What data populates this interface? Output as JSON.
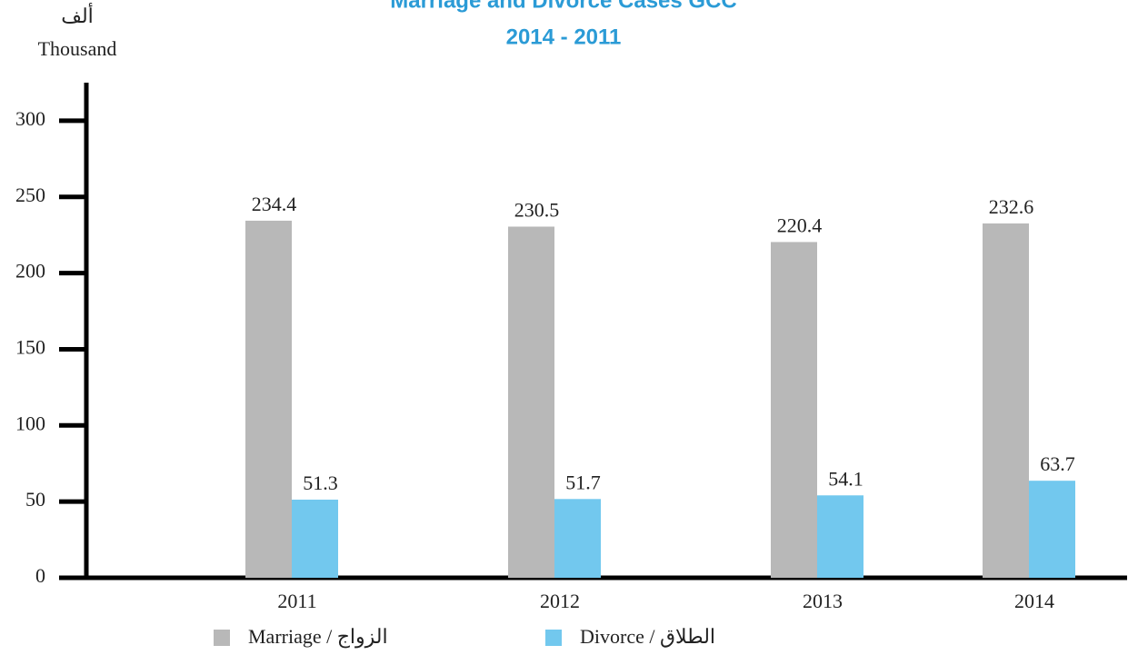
{
  "chart_data": {
    "type": "bar",
    "title": "Marriage and Divorce Cases GCC",
    "subtitle": "2014 - 2011",
    "ylabel_ar": "ألف",
    "ylabel": "Thousand",
    "categories": [
      "2011",
      "2012",
      "2013",
      "2014"
    ],
    "series": [
      {
        "name": "Marriage / الزواج",
        "color": "#b8b8b8",
        "values": [
          234.4,
          230.5,
          220.4,
          232.6
        ]
      },
      {
        "name": "Divorce / الطلاق",
        "color": "#72c8ee",
        "values": [
          51.3,
          51.7,
          54.1,
          63.7
        ]
      }
    ],
    "ylim": [
      0,
      325
    ],
    "yticks": [
      0,
      50,
      100,
      150,
      200,
      250,
      300
    ],
    "grid": false
  }
}
